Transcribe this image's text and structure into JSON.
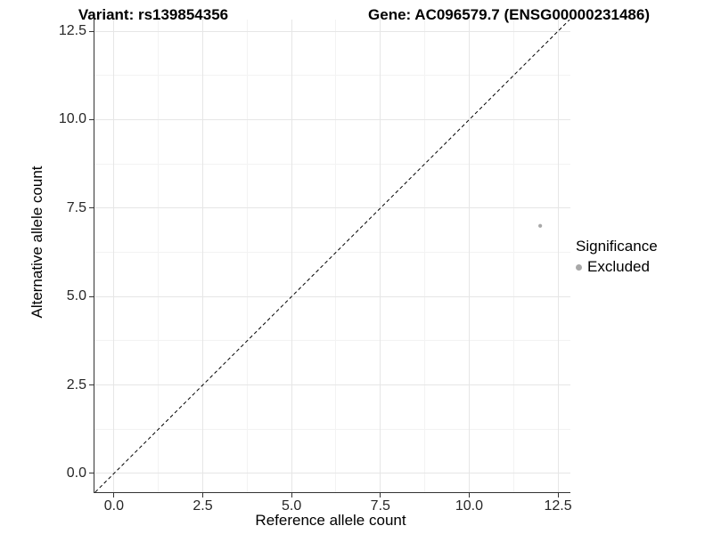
{
  "chart_data": {
    "type": "scatter",
    "title": "Variant: rs139854356",
    "subtitle": "Gene: AC096579.7 (ENSG00000231486)",
    "xlabel": "Reference allele count",
    "ylabel": "Alternative allele count",
    "xlim": [
      -0.55,
      12.85
    ],
    "ylim": [
      -0.53,
      12.83
    ],
    "x_ticks": [
      0,
      2.5,
      5,
      7.5,
      10,
      12.5
    ],
    "x_tick_labels": [
      "0.0",
      "2.5",
      "5.0",
      "7.5",
      "10.0",
      "12.5"
    ],
    "y_ticks": [
      0,
      2.5,
      5,
      7.5,
      10,
      12.5
    ],
    "y_tick_labels": [
      "0.0",
      "2.5",
      "5.0",
      "7.5",
      "10.0",
      "12.5"
    ],
    "x_minor_ticks": [
      1.25,
      3.75,
      6.25,
      8.75,
      11.25
    ],
    "y_minor_ticks": [
      1.25,
      3.75,
      6.25,
      8.75,
      11.25
    ],
    "grid": true,
    "legend_position": "right",
    "reference_line": {
      "type": "identity y = x",
      "style": "dashed",
      "color": "#000000"
    },
    "series": [
      {
        "name": "Excluded",
        "color": "#a8a8a8",
        "points": [
          [
            12,
            7
          ]
        ]
      }
    ],
    "legend": {
      "title": "Significance",
      "items": [
        {
          "label": "Excluded",
          "color": "#a8a8a8"
        }
      ]
    }
  },
  "colors": {
    "background": "#ffffff",
    "axis_line": "#333333",
    "tick_text": "#262626",
    "grid_major": "#e6e6e6",
    "grid_minor": "#f3f3f3",
    "point": "#a8a8a8"
  }
}
